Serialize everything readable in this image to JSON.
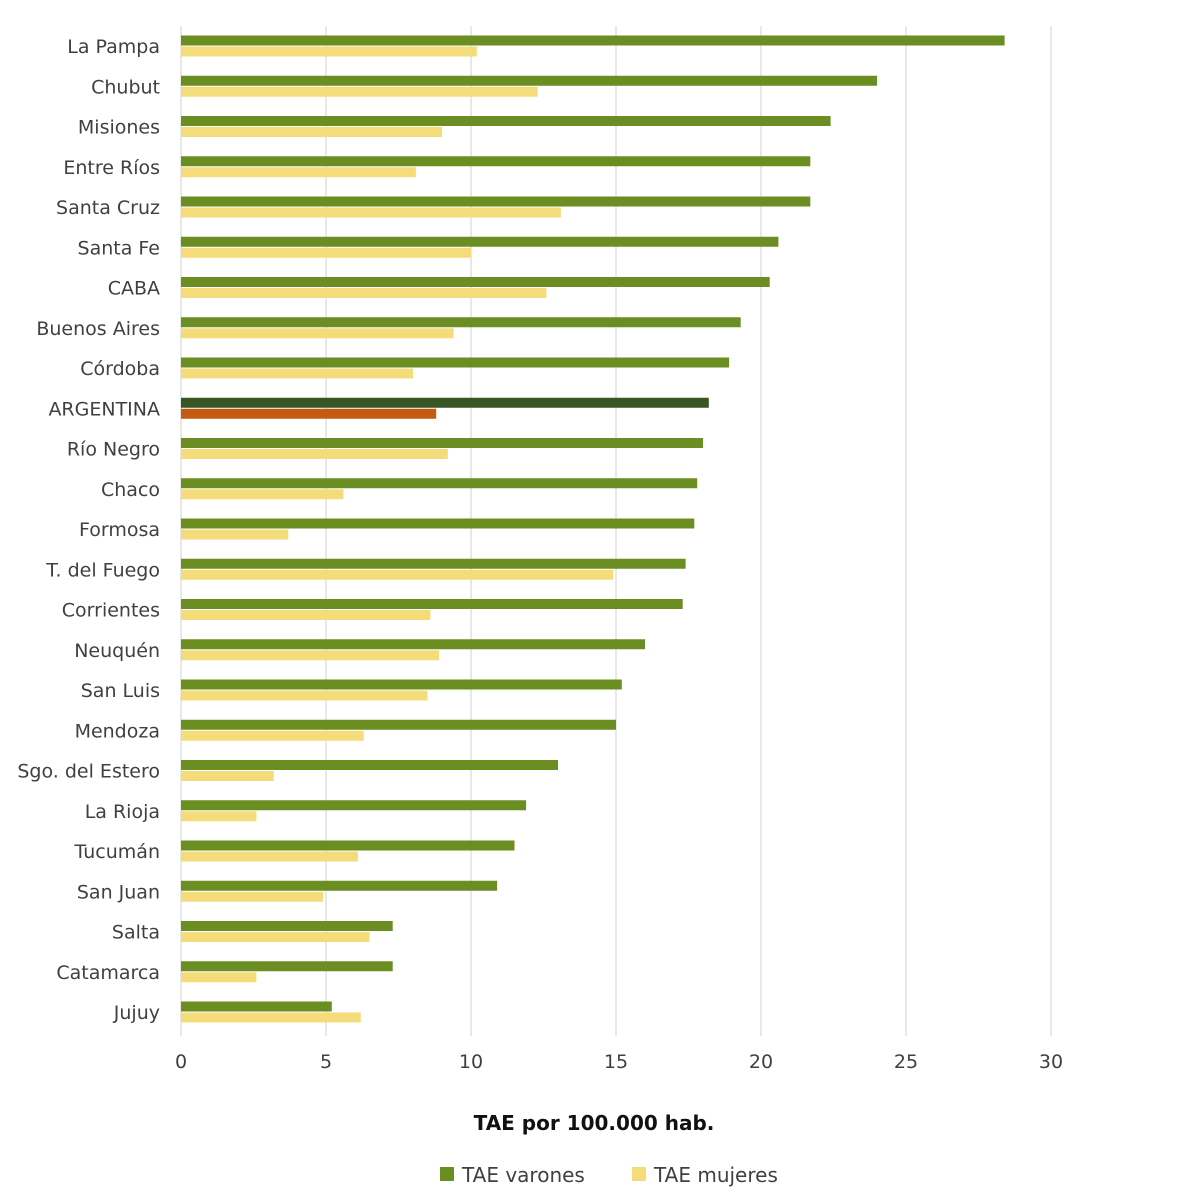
{
  "chart_data": {
    "type": "bar",
    "orientation": "horizontal",
    "categories": [
      "La Pampa",
      "Chubut",
      "Misiones",
      "Entre Ríos",
      "Santa Cruz",
      "Santa Fe",
      "CABA",
      "Buenos Aires",
      "Córdoba",
      "ARGENTINA",
      "Río Negro",
      "Chaco",
      "Formosa",
      "T. del Fuego",
      "Corrientes",
      "Neuquén",
      "San Luis",
      "Mendoza",
      "Sgo. del Estero",
      "La Rioja",
      "Tucumán",
      "San Juan",
      "Salta",
      "Catamarca",
      "Jujuy"
    ],
    "series": [
      {
        "name": "TAE varones",
        "color": "#6b8e23",
        "values": [
          28.4,
          24.0,
          22.4,
          21.7,
          21.7,
          20.6,
          20.3,
          19.3,
          18.9,
          18.2,
          18.0,
          17.8,
          17.7,
          17.4,
          17.3,
          16.0,
          15.2,
          15.0,
          13.0,
          11.9,
          11.5,
          10.9,
          7.3,
          7.3,
          5.2
        ]
      },
      {
        "name": "TAE mujeres",
        "color": "#f5dc7a",
        "values": [
          10.2,
          12.3,
          9.0,
          8.1,
          13.1,
          10.0,
          12.6,
          9.4,
          8.0,
          8.8,
          9.2,
          5.6,
          3.7,
          14.9,
          8.6,
          8.9,
          8.5,
          6.3,
          3.2,
          2.6,
          6.1,
          4.9,
          6.5,
          2.6,
          6.2
        ]
      }
    ],
    "highlight": {
      "category": "ARGENTINA",
      "colors": {
        "TAE varones": "#375623",
        "TAE mujeres": "#c55a11"
      }
    },
    "xlim": [
      0,
      30
    ],
    "xticks": [
      0,
      5,
      10,
      15,
      20,
      25,
      30
    ],
    "xlabel": "TAE por 100.000 hab.",
    "ylabel": "",
    "title": "",
    "grid": true,
    "legend_position": "bottom"
  }
}
